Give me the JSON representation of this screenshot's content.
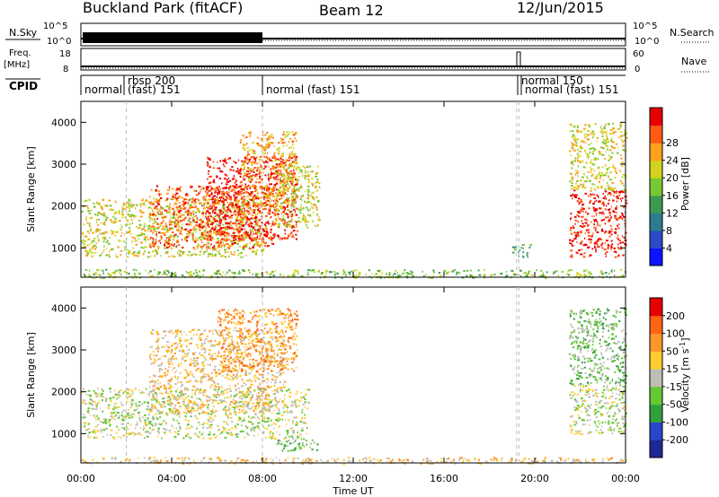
{
  "header": {
    "station": "Buckland Park (fitACF)",
    "beam": "Beam 12",
    "date": "12/Jun/2015"
  },
  "summary_panels": {
    "nsky": {
      "left_label": "N.Sky",
      "right_label": "N.Search",
      "left_ticks": [
        "10^5",
        "10^0"
      ],
      "right_ticks": [
        "10^5",
        "10^0"
      ]
    },
    "freq": {
      "left_label_1": "Freq.",
      "left_label_2": "[MHz]",
      "right_label": "Nave",
      "left_ticks": [
        "18",
        "8"
      ],
      "right_ticks": [
        "60",
        "0"
      ]
    },
    "cpid": {
      "label": "CPID",
      "segments": [
        {
          "t": 0.0,
          "text": "normal"
        },
        {
          "t": 2.0,
          "text": "rbsp 200"
        },
        {
          "t": 2.0,
          "text": "(fast) 151"
        },
        {
          "t": 8.0,
          "text": "normal (fast) 151"
        },
        {
          "t": 19.2,
          "text": "normal 150"
        },
        {
          "t": 19.3,
          "text": "normal (fast) 151"
        }
      ]
    }
  },
  "colorbars": {
    "power": {
      "label": "Power [dB]",
      "ticks": [
        "4",
        "8",
        "12",
        "16",
        "20",
        "24",
        "28"
      ],
      "colors": [
        "#0a14ff",
        "#2c4bc8",
        "#2e7d8c",
        "#3c9a50",
        "#78c832",
        "#d2d21e",
        "#ffa01e",
        "#ff5a14",
        "#e80000"
      ]
    },
    "velocity": {
      "label": "Velocity [m s",
      "label_sup": "-1",
      "label_end": "]",
      "ticks": [
        "200",
        "100",
        "50",
        "15",
        "-15",
        "-50",
        "-100",
        "-200"
      ],
      "colors": [
        "#1e2896",
        "#2846c8",
        "#32a03c",
        "#64c832",
        "#bebeb4",
        "#ffcc32",
        "#ff9628",
        "#ff6414",
        "#e60000"
      ]
    }
  },
  "chart_data": [
    {
      "type": "heatmap",
      "name": "power",
      "ylabel": "Slant Range [km]",
      "xlabel": "Time UT",
      "ylim": [
        300,
        4500
      ],
      "xlim": [
        0,
        24
      ],
      "y_ticks": [
        1000,
        2000,
        3000,
        4000
      ],
      "x_ticks": [
        "00:00",
        "04:00",
        "08:00",
        "12:00",
        "16:00",
        "20:00",
        "00:00"
      ],
      "regions": [
        {
          "t0": 0.0,
          "t1": 8.0,
          "r0": 800,
          "r1": 2200,
          "level": 5
        },
        {
          "t0": 3.0,
          "t1": 8.5,
          "r0": 1000,
          "r1": 2500,
          "level": 7
        },
        {
          "t0": 5.5,
          "t1": 9.5,
          "r0": 1200,
          "r1": 3200,
          "level": 8
        },
        {
          "t0": 7.0,
          "t1": 9.5,
          "r0": 2000,
          "r1": 3800,
          "level": 6
        },
        {
          "t0": 8.5,
          "t1": 10.5,
          "r0": 1500,
          "r1": 3000,
          "level": 5
        },
        {
          "t0": 0.0,
          "t1": 24.0,
          "r0": 300,
          "r1": 500,
          "level": 4
        },
        {
          "t0": 19.0,
          "t1": 19.8,
          "r0": 800,
          "r1": 1100,
          "level": 3
        },
        {
          "t0": 21.5,
          "t1": 24.0,
          "r0": 800,
          "r1": 2400,
          "level": 8
        },
        {
          "t0": 21.5,
          "t1": 24.0,
          "r0": 2400,
          "r1": 4000,
          "level": 5
        }
      ]
    },
    {
      "type": "heatmap",
      "name": "velocity",
      "ylabel": "Slant Range [km]",
      "xlabel": "Time UT",
      "ylim": [
        300,
        4500
      ],
      "xlim": [
        0,
        24
      ],
      "y_ticks": [
        1000,
        2000,
        3000,
        4000
      ],
      "x_ticks": [
        "00:00",
        "04:00",
        "08:00",
        "12:00",
        "16:00",
        "20:00",
        "00:00"
      ],
      "regions": [
        {
          "t0": 0.0,
          "t1": 10.0,
          "r0": 900,
          "r1": 2100,
          "level": 4
        },
        {
          "t0": 3.0,
          "t1": 9.0,
          "r0": 1500,
          "r1": 3500,
          "level": 5
        },
        {
          "t0": 6.0,
          "t1": 9.5,
          "r0": 2500,
          "r1": 4000,
          "level": 6
        },
        {
          "t0": 8.5,
          "t1": 10.5,
          "r0": 600,
          "r1": 900,
          "level": 3
        },
        {
          "t0": 0.0,
          "t1": 24.0,
          "r0": 300,
          "r1": 450,
          "level": 5
        },
        {
          "t0": 21.5,
          "t1": 24.0,
          "r0": 1000,
          "r1": 2200,
          "level": 4
        },
        {
          "t0": 21.5,
          "t1": 24.0,
          "r0": 2200,
          "r1": 4000,
          "level": 3
        }
      ]
    }
  ]
}
